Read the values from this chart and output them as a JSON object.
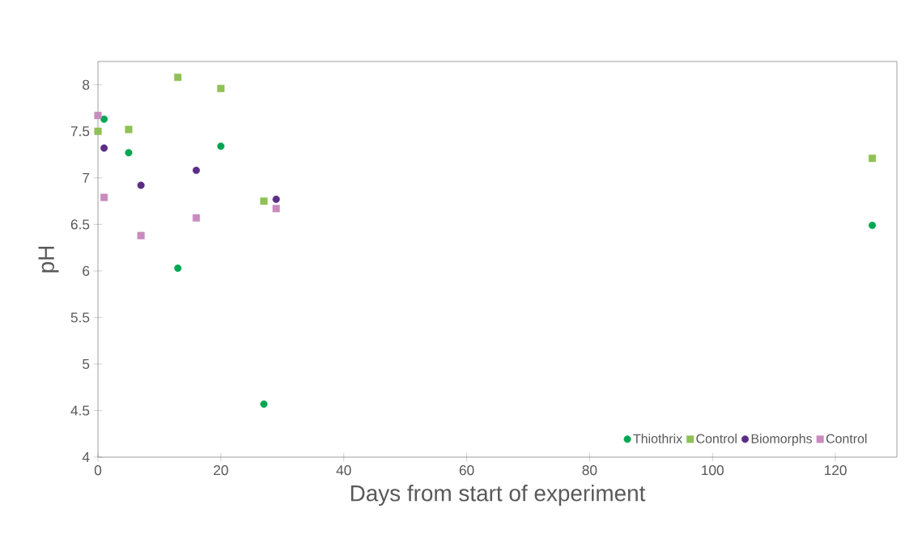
{
  "chart_data": {
    "type": "scatter",
    "xlabel": "Days from start of experiment",
    "ylabel": "pH",
    "xlim": [
      0,
      130
    ],
    "ylim": [
      4,
      8.25
    ],
    "xticks": [
      0,
      20,
      40,
      60,
      80,
      100,
      120
    ],
    "yticks": [
      4,
      {
        "value": 4.5,
        "label": "4.5"
      },
      5,
      {
        "value": 5.5,
        "label": "5.5"
      },
      6,
      {
        "value": 6.5,
        "label": "6.5"
      },
      7,
      {
        "value": 7.5,
        "label": "7.5"
      },
      8
    ],
    "grid": false,
    "legend": "bottom right",
    "series": [
      {
        "name": "Thiothrix",
        "color": "#00a651",
        "marker": "circle",
        "x": [
          1,
          5,
          13,
          20,
          27,
          126
        ],
        "values": [
          7.63,
          7.27,
          6.03,
          7.34,
          4.57,
          6.49
        ]
      },
      {
        "name": "Control",
        "color": "#8fc155",
        "marker": "square",
        "x": [
          0,
          5,
          13,
          20,
          27,
          126
        ],
        "values": [
          7.5,
          7.52,
          8.08,
          7.96,
          6.75,
          7.21
        ]
      },
      {
        "name": "Biomorphs",
        "color": "#5b2d86",
        "marker": "circle",
        "x": [
          1,
          7,
          16,
          29
        ],
        "values": [
          7.32,
          6.92,
          7.08,
          6.77
        ]
      },
      {
        "name": "Control",
        "color": "#c98bbd",
        "marker": "square",
        "x": [
          0,
          1,
          7,
          16,
          29
        ],
        "values": [
          7.67,
          6.79,
          6.38,
          6.57,
          6.67
        ]
      }
    ]
  }
}
